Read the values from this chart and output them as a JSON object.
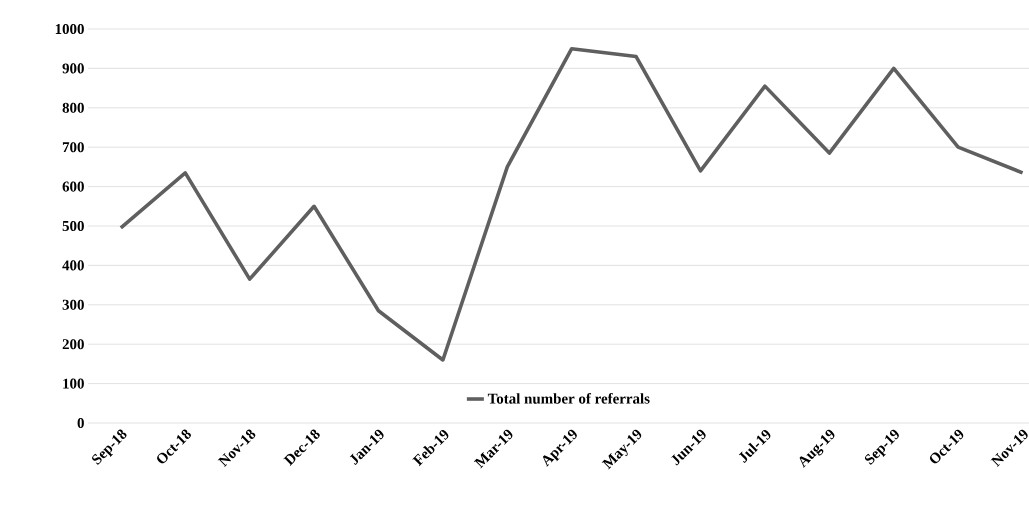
{
  "chart_data": {
    "type": "line",
    "categories": [
      "Sep-18",
      "Oct-18",
      "Nov-18",
      "Dec-18",
      "Jan-19",
      "Feb-19",
      "Mar-19",
      "Apr-19",
      "May-19",
      "Jun-19",
      "Jul-19",
      "Aug-19",
      "Sep-19",
      "Oct-19",
      "Nov-19"
    ],
    "series": [
      {
        "name": "Total number of referrals",
        "color": "#5f5f5f",
        "values": [
          495,
          635,
          365,
          550,
          285,
          160,
          650,
          950,
          930,
          640,
          855,
          685,
          900,
          700,
          635
        ]
      }
    ],
    "ylim": [
      0,
      1000
    ],
    "yticks": [
      0,
      100,
      200,
      300,
      400,
      500,
      600,
      700,
      800,
      900,
      1000
    ],
    "grid": "y",
    "legend": "bottom",
    "marker": "none",
    "line_style": "solid"
  }
}
